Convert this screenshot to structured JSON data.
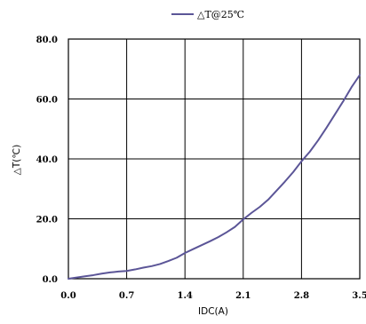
{
  "chart_data": {
    "type": "line",
    "title": "",
    "xlabel": "IDC(A)",
    "ylabel": "△T(℃)",
    "xlim": [
      0,
      3.5
    ],
    "ylim": [
      0,
      80
    ],
    "x_ticks": [
      0,
      0.7,
      1.4,
      2.1,
      2.8,
      3.5
    ],
    "x_tick_labels": [
      "0.0",
      "0.7",
      "1.4",
      "2.1",
      "2.8",
      "3.5"
    ],
    "y_ticks": [
      0,
      20,
      40,
      60,
      80
    ],
    "y_tick_labels": [
      "0.0",
      "20.0",
      "40.0",
      "60.0",
      "80.0"
    ],
    "grid": true,
    "legend_position": "top-center",
    "series": [
      {
        "name": "△T@25℃",
        "color": "#5b5597",
        "x": [
          0,
          0.1,
          0.2,
          0.3,
          0.4,
          0.5,
          0.6,
          0.7,
          0.8,
          0.9,
          1.0,
          1.1,
          1.2,
          1.3,
          1.4,
          1.5,
          1.6,
          1.7,
          1.8,
          1.9,
          2.0,
          2.1,
          2.2,
          2.3,
          2.4,
          2.5,
          2.6,
          2.7,
          2.8,
          2.9,
          3.0,
          3.1,
          3.2,
          3.3,
          3.4,
          3.5
        ],
        "y": [
          0,
          0.4,
          0.8,
          1.2,
          1.7,
          2.1,
          2.4,
          2.6,
          3.1,
          3.7,
          4.2,
          4.9,
          5.9,
          7.0,
          8.6,
          9.9,
          11.2,
          12.5,
          13.9,
          15.5,
          17.3,
          19.8,
          22.0,
          24.0,
          26.4,
          29.4,
          32.4,
          35.6,
          39.2,
          42.4,
          46.2,
          50.4,
          54.8,
          59.2,
          63.9,
          68.0
        ]
      }
    ]
  }
}
